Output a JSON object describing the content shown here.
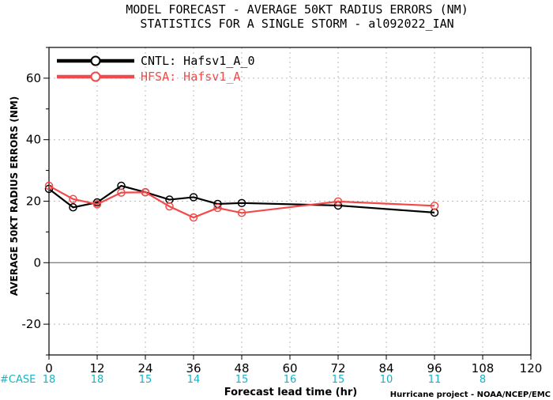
{
  "chart_data": {
    "type": "line",
    "title": "MODEL FORECAST - AVERAGE 50KT RADIUS ERRORS (NM)",
    "subtitle": "STATISTICS FOR A SINGLE STORM - al092022_IAN",
    "xlabel": "Forecast lead time (hr)",
    "ylabel": "AVERAGE 50KT RADIUS ERRORS (NM)",
    "xlim": [
      0,
      120
    ],
    "ylim": [
      -30,
      70
    ],
    "x_ticks": [
      0,
      12,
      24,
      36,
      48,
      60,
      72,
      84,
      96,
      108,
      120
    ],
    "y_ticks": [
      -20,
      0,
      20,
      40,
      60
    ],
    "grid": true,
    "legend_position": "top-left",
    "series": [
      {
        "name": "CNTL: Hafsv1_A_0",
        "color": "#000000",
        "x": [
          0,
          6,
          12,
          18,
          24,
          30,
          36,
          42,
          48,
          72,
          96
        ],
        "y": [
          24.0,
          18.0,
          19.6,
          25.0,
          22.9,
          20.5,
          21.3,
          19.1,
          19.4,
          18.6,
          16.3
        ]
      },
      {
        "name": "HFSA: Hafsv1_A",
        "color": "#f24a4a",
        "x": [
          0,
          6,
          12,
          18,
          24,
          30,
          36,
          42,
          48,
          72,
          96
        ],
        "y": [
          25.0,
          20.7,
          19.0,
          22.8,
          22.9,
          18.3,
          14.7,
          17.8,
          16.2,
          19.9,
          18.5
        ]
      }
    ],
    "case_counts": {
      "label": "#CASE",
      "x": [
        0,
        12,
        24,
        36,
        48,
        60,
        72,
        84,
        96,
        108
      ],
      "values": [
        "18",
        "18",
        "15",
        "14",
        "15",
        "16",
        "15",
        "10",
        "11",
        "8"
      ]
    },
    "credit": "Hurricane project - NOAA/NCEP/EMC"
  }
}
